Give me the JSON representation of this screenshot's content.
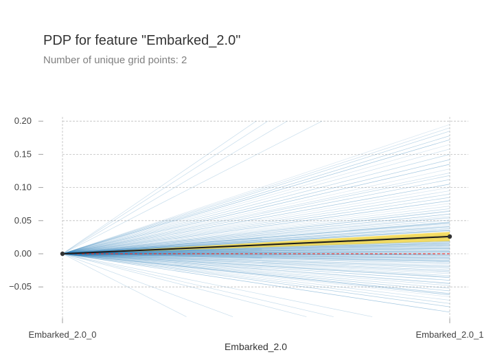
{
  "title": "PDP for feature \"Embarked_2.0\"",
  "subtitle": "Number of unique grid points: 2",
  "chart_data": {
    "type": "line",
    "xlabel": "Embarked_2.0",
    "ylabel": "",
    "categories": [
      "Embarked_2.0_0",
      "Embarked_2.0_1"
    ],
    "ylim": [
      -0.1,
      0.2
    ],
    "yticks": [
      -0.05,
      0.0,
      0.05,
      0.1,
      0.15,
      0.2
    ],
    "grid": true,
    "pdp": {
      "values": [
        0.0,
        0.026
      ],
      "ci": [
        0.019,
        0.033
      ]
    },
    "baseline": 0.0,
    "ice_end_values": [
      0.195,
      0.19,
      0.185,
      0.178,
      0.172,
      0.165,
      0.158,
      0.15,
      0.142,
      0.135,
      0.128,
      0.122,
      0.118,
      0.112,
      0.105,
      0.1,
      0.095,
      0.09,
      0.085,
      0.08,
      0.076,
      0.072,
      0.068,
      0.064,
      0.06,
      0.057,
      0.054,
      0.051,
      0.048,
      0.046,
      0.044,
      0.042,
      0.04,
      0.038,
      0.036,
      0.034,
      0.032,
      0.03,
      0.029,
      0.028,
      0.027,
      0.026,
      0.025,
      0.024,
      0.023,
      0.022,
      0.021,
      0.02,
      0.019,
      0.018,
      0.017,
      0.016,
      0.015,
      0.014,
      0.013,
      0.012,
      0.011,
      0.01,
      0.009,
      0.008,
      0.007,
      0.006,
      0.005,
      0.004,
      0.003,
      0.002,
      0.001,
      0.0,
      -0.001,
      -0.002,
      -0.003,
      -0.004,
      -0.005,
      -0.006,
      -0.007,
      -0.008,
      -0.009,
      -0.01,
      -0.012,
      -0.014,
      -0.016,
      -0.018,
      -0.02,
      -0.022,
      -0.025,
      -0.028,
      -0.03,
      -0.033,
      -0.036,
      -0.04,
      -0.044,
      -0.048,
      -0.052,
      -0.056,
      -0.06,
      -0.065,
      -0.07,
      -0.075,
      -0.08,
      -0.088,
      0.065,
      0.055,
      0.047,
      0.041,
      0.035,
      0.031,
      0.027,
      0.024,
      0.02,
      0.016,
      0.012,
      0.008,
      0.003,
      -0.002,
      -0.011,
      -0.019,
      -0.027,
      -0.035,
      -0.045,
      -0.062
    ],
    "ice_steep": [
      {
        "at_y": 0.2,
        "at_cat": 0.58
      },
      {
        "at_y": 0.2,
        "at_cat": 0.67
      },
      {
        "at_y": 0.2,
        "at_cat": 0.53
      },
      {
        "at_y": 0.2,
        "at_cat": 0.5
      },
      {
        "at_y": -0.095,
        "at_cat": 0.32
      },
      {
        "at_y": -0.095,
        "at_cat": 0.44
      },
      {
        "at_y": -0.095,
        "at_cat": 0.63
      },
      {
        "at_y": -0.095,
        "at_cat": 0.7
      },
      {
        "at_y": -0.095,
        "at_cat": 0.8
      }
    ],
    "colors": {
      "ice": "#1f77b4",
      "pdp_line": "#1a1a1a",
      "pdp_band": "#fdd835",
      "baseline": "#e53935",
      "marker": "#333333"
    }
  }
}
